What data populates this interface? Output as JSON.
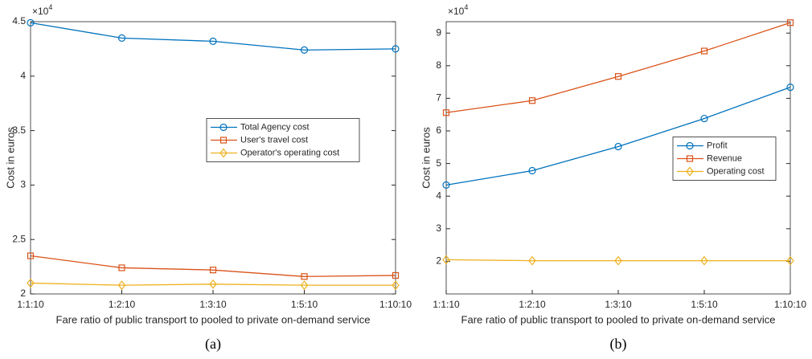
{
  "chart_data": [
    {
      "type": "line",
      "y_multiplier": "×10",
      "y_multiplier_exponent": "4",
      "xlabel": "Fare ratio of public transport to pooled to private on-demand service",
      "ylabel": "Cost in euros",
      "caption": "(a)",
      "legend": "center right",
      "categories": [
        "1:1:10",
        "1:2:10",
        "1:3:10",
        "1:5:10",
        "1:10:10"
      ],
      "ylim": [
        2,
        4.5
      ],
      "yticks": [
        2,
        2.5,
        3,
        3.5,
        4,
        4.5
      ],
      "series": [
        {
          "name": "Total Agency cost",
          "color": "#0072bd",
          "marker": "circle",
          "values": [
            4.49,
            4.35,
            4.32,
            4.24,
            4.25
          ]
        },
        {
          "name": "User's travel cost",
          "color": "#d95319",
          "marker": "square",
          "values": [
            2.35,
            2.24,
            2.22,
            2.16,
            2.17
          ]
        },
        {
          "name": "Operator's operating cost",
          "color": "#edb120",
          "marker": "diamond",
          "values": [
            2.1,
            2.08,
            2.09,
            2.08,
            2.08
          ]
        }
      ]
    },
    {
      "type": "line",
      "y_multiplier": "×10",
      "y_multiplier_exponent": "4",
      "xlabel": "Fare ratio of public transport to pooled to private on-demand service",
      "ylabel": "Cost in euros",
      "caption": "(b)",
      "legend": "right",
      "categories": [
        "1:1:10",
        "1:2:10",
        "1:3:10",
        "1:5:10",
        "1:10:10"
      ],
      "ylim": [
        1,
        9.35
      ],
      "yticks": [
        2,
        3,
        4,
        5,
        6,
        7,
        8,
        9
      ],
      "series": [
        {
          "name": "Profit",
          "color": "#0072bd",
          "marker": "circle",
          "values": [
            4.34,
            4.78,
            5.52,
            6.38,
            7.34
          ]
        },
        {
          "name": "Revenue",
          "color": "#d95319",
          "marker": "square",
          "values": [
            6.56,
            6.93,
            7.67,
            8.45,
            9.32
          ]
        },
        {
          "name": "Operating cost",
          "color": "#edb120",
          "marker": "diamond",
          "values": [
            2.05,
            2.02,
            2.02,
            2.02,
            2.02
          ]
        }
      ]
    }
  ]
}
